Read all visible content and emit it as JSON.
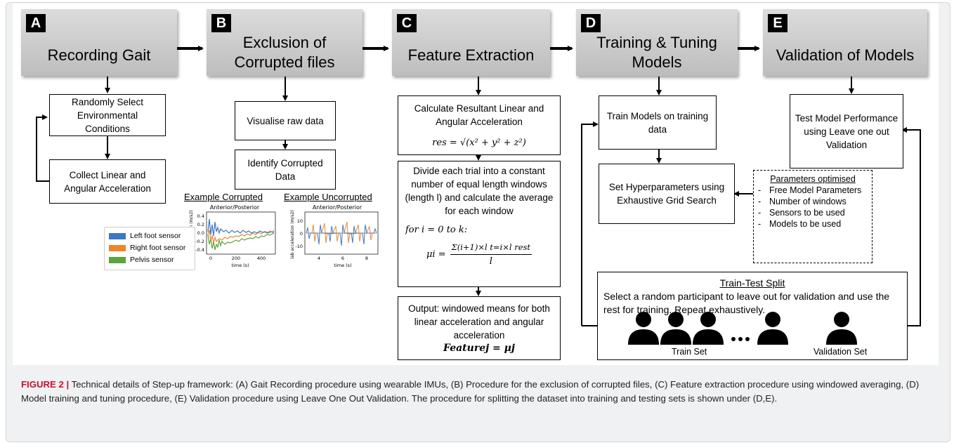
{
  "stages": [
    {
      "letter": "A",
      "title": "Recording Gait"
    },
    {
      "letter": "B",
      "title": "Exclusion of Corrupted files"
    },
    {
      "letter": "C",
      "title": "Feature Extraction"
    },
    {
      "letter": "D",
      "title": "Training & Tuning Models"
    },
    {
      "letter": "E",
      "title": "Validation of Models"
    }
  ],
  "boxes": {
    "a1": "Randomly Select Environmental Conditions",
    "a2": "Collect Linear and Angular Acceleration",
    "b1": "Visualise raw data",
    "b2": "Identify Corrupted Data",
    "c1": "Calculate Resultant Linear and Angular Acceleration",
    "c1_formula": "res = √(x² + y² + z²)",
    "c2": "Divide each trial into a constant number of equal length windows (length l) and calculate the average for each window",
    "c2_loop": "for i = 0 to k:",
    "c2_formula_lhs": "μi =",
    "c2_formula_num": "Σ(i+1)×l t=i×l rest",
    "c2_formula_den": "l",
    "c3": "Output: windowed means for both linear acceleration and angular acceleration",
    "c3_formula": "Featurej = μj",
    "d1": "Train Models on training data",
    "d2": "Set Hyperparameters using Exhaustive Grid Search",
    "e1": "Test Model Performance using Leave one out Validation"
  },
  "parameters": {
    "title": "Parameters optimised",
    "items": [
      "Free Model Parameters",
      "Number of windows",
      "Sensors to be used",
      "Models to be used"
    ]
  },
  "split": {
    "title": "Train-Test Split",
    "text": "Select a random participant to leave out for validation and use the rest for training. Repeat exhaustively.",
    "train_label": "Train Set",
    "validation_label": "Validation Set"
  },
  "examples": {
    "corrupted_title": "Example Corrupted",
    "uncorrupted_title": "Example Uncorrupted",
    "plot_title": "Anterior/Posterior",
    "ylabel": "lab acceleration (m/s2)",
    "xlabel": "time (s)",
    "corrupted_xticks": [
      "0",
      "200",
      "400"
    ],
    "corrupted_yticks": [
      "0.4",
      "0.2",
      "0.0",
      "-0.2",
      "-0.4"
    ],
    "uncorrupted_xticks": [
      "4",
      "6",
      "8"
    ],
    "uncorrupted_yticks": [
      "10",
      "0",
      "-10"
    ],
    "legend": [
      {
        "label": "Left foot sensor",
        "color": "#3c78c3"
      },
      {
        "label": "Right foot sensor",
        "color": "#f2842a"
      },
      {
        "label": "Pelvis sensor",
        "color": "#5aa53a"
      }
    ]
  },
  "caption": {
    "label": "FIGURE 2 |",
    "text": "Technical details of Step-up framework: (A) Gait Recording procedure using wearable IMUs, (B) Procedure for the exclusion of corrupted files, (C) Feature extraction procedure using windowed averaging, (D) Model training and tuning procedure, (E) Validation procedure using Leave One Out Validation. The procedure for splitting the dataset into training and testing sets is shown under (D,E)."
  }
}
